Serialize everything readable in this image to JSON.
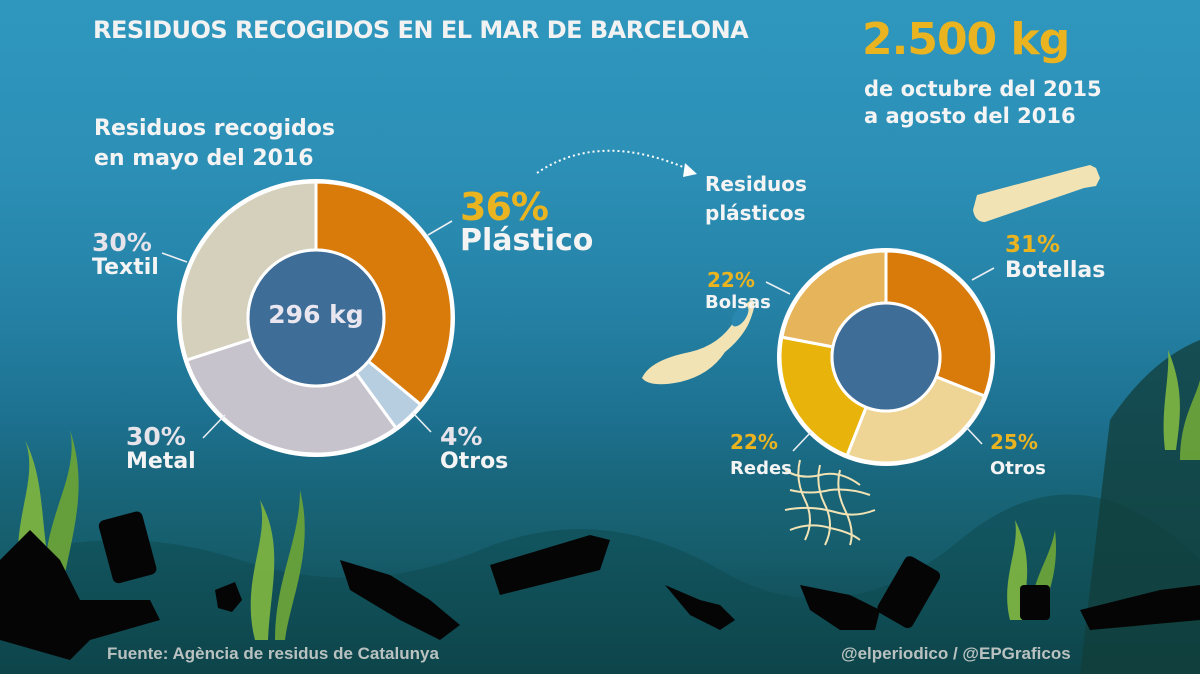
{
  "title": "RESIDUOS RECOGIDOS EN EL MAR DE BARCELONA",
  "total": {
    "value": "2.500 kg",
    "line1": "de octubre del 2015",
    "line2": "a agosto del 2016"
  },
  "left_chart": {
    "subtitle_line1": "Residuos recogidos",
    "subtitle_line2": "en mayo del 2016",
    "center_label": "296 kg",
    "segments": [
      {
        "name": "Plástico",
        "pct_label": "36%",
        "value": 36,
        "color": "#d97b0b"
      },
      {
        "name": "Otros",
        "pct_label": "4%",
        "value": 4,
        "color": "#b7cde0"
      },
      {
        "name": "Metal",
        "pct_label": "30%",
        "value": 30,
        "color": "#c7c3cc"
      },
      {
        "name": "Textil",
        "pct_label": "30%",
        "value": 30,
        "color": "#d4d0bc"
      }
    ]
  },
  "right_chart": {
    "subtitle_line1": "Residuos",
    "subtitle_line2": "plásticos",
    "segments": [
      {
        "name": "Botellas",
        "pct_label": "31%",
        "value": 31,
        "color": "#d97b0b"
      },
      {
        "name": "Otros",
        "pct_label": "25%",
        "value": 25,
        "color": "#efd595"
      },
      {
        "name": "Redes",
        "pct_label": "22%",
        "value": 22,
        "color": "#e8b40b"
      },
      {
        "name": "Bolsas",
        "pct_label": "22%",
        "value": 22,
        "color": "#e6b45a"
      }
    ]
  },
  "footer": {
    "source": "Fuente: Agència de residus de Catalunya",
    "credit": "@elperiodico / @EPGraficos"
  },
  "colors": {
    "center_disc": "#3e6d98",
    "accent_yellow": "#eab320",
    "background_top": "#2f97be",
    "background_bottom": "#0f4b57"
  },
  "chart_data": [
    {
      "type": "pie",
      "title": "Residuos recogidos en mayo del 2016",
      "center_label": "296 kg",
      "categories": [
        "Plástico",
        "Otros",
        "Metal",
        "Textil"
      ],
      "values": [
        36,
        4,
        30,
        30
      ],
      "unit": "%",
      "donut": true
    },
    {
      "type": "pie",
      "title": "Residuos plásticos",
      "categories": [
        "Botellas",
        "Otros",
        "Redes",
        "Bolsas"
      ],
      "values": [
        31,
        25,
        22,
        22
      ],
      "unit": "%",
      "donut": true
    }
  ]
}
